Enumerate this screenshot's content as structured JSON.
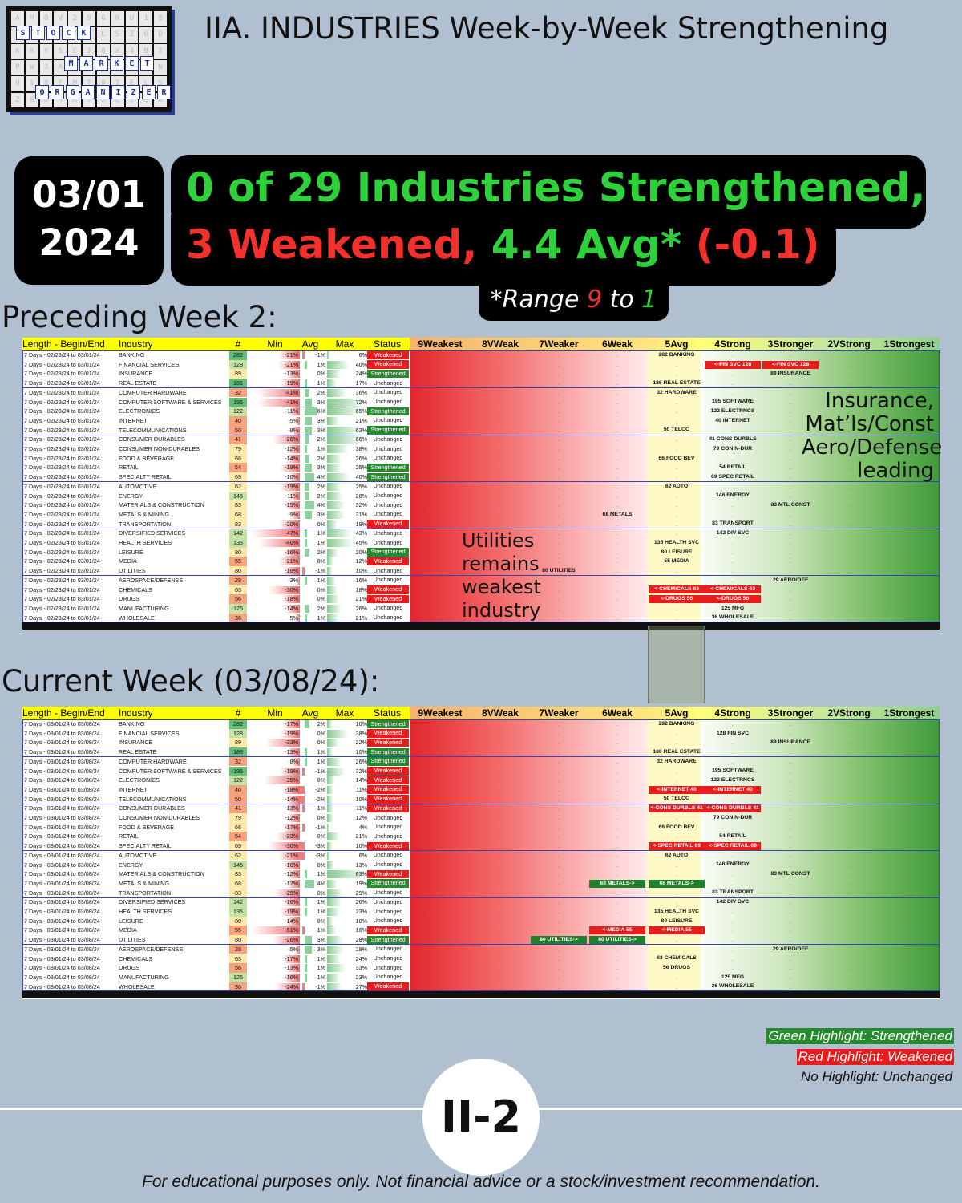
{
  "logo": {
    "words": [
      "STOCK",
      "MARKET",
      "ORGANIZER"
    ]
  },
  "title": "IIA. INDUSTRIES Week-by-Week Strengthening",
  "date": {
    "line1": "03/01",
    "line2": "2024"
  },
  "headline": {
    "line1": "0 of 29 Industries Strengthened,",
    "line2_weak": "3 Weakened, ",
    "line2_avg": "4.4 Avg* ",
    "line2_delta": "(-0.1)"
  },
  "range": {
    "prefix": "*Range ",
    "hi": "9",
    "mid": " to ",
    "lo": "1"
  },
  "section1": "Preceding Week 2:",
  "section2": "Current Week (03/08/24):",
  "columns": [
    "Length - Begin/End",
    "Industry",
    "#",
    "Min",
    "Avg",
    "Max",
    "Status",
    "9Weakest",
    "8VWeak",
    "7Weaker",
    "6Weak",
    "5Avg",
    "4Strong",
    "3Stronger",
    "2VStrong",
    "1Strongest"
  ],
  "colors": {
    "strengthened": "#25892d",
    "weakened": "#e81c1d",
    "header": "#ffff00"
  },
  "industries": [
    "BANKING",
    "FINANCIAL SERVICES",
    "INSURANCE",
    "REAL ESTATE",
    "COMPUTER HARDWARE",
    "COMPUTER SOFTWARE & SERVICES",
    "ELECTRONICS",
    "INTERNET",
    "TELECOMMUNICATIONS",
    "CONSUMER DURABLES",
    "CONSUMER NON-DURABLES",
    "FOOD & BEVERAGE",
    "RETAIL",
    "SPECIALTY RETAIL",
    "AUTOMOTIVE",
    "ENERGY",
    "MATERIALS & CONSTRUCTION",
    "METALS & MINING",
    "TRANSPORTATION",
    "DIVERSIFIED SERVICES",
    "HEALTH SERVICES",
    "LEISURE",
    "MEDIA",
    "UTILITIES",
    "AEROSPACE/DEFENSE",
    "CHEMICALS",
    "DRUGS",
    "MANUFACTURING",
    "WHOLESALE"
  ],
  "counts": [
    "282",
    "128",
    "89",
    "186",
    "32",
    "195",
    "122",
    "40",
    "50",
    "41",
    "79",
    "66",
    "54",
    "69",
    "62",
    "146",
    "83",
    "68",
    "83",
    "142",
    "135",
    "80",
    "55",
    "80",
    "29",
    "63",
    "56",
    "125",
    "36"
  ],
  "week1": {
    "period": "7 Days - 02/23/24 to 03/01/24",
    "rows": [
      [
        "-21%",
        "-1%",
        "6%",
        "Weakened"
      ],
      [
        "-21%",
        "1%",
        "40%",
        "Weakened"
      ],
      [
        "-13%",
        "0%",
        "24%",
        "Strengthened"
      ],
      [
        "-19%",
        "1%",
        "17%",
        "Unchanged"
      ],
      [
        "-41%",
        "2%",
        "36%",
        "Unchanged"
      ],
      [
        "-41%",
        "3%",
        "72%",
        "Unchanged"
      ],
      [
        "-11%",
        "6%",
        "65%",
        "Strengthened"
      ],
      [
        "-5%",
        "3%",
        "21%",
        "Unchanged"
      ],
      [
        "-8%",
        "3%",
        "63%",
        "Strengthened"
      ],
      [
        "-26%",
        "2%",
        "66%",
        "Unchanged"
      ],
      [
        "-12%",
        "1%",
        "38%",
        "Unchanged"
      ],
      [
        "-14%",
        "2%",
        "26%",
        "Unchanged"
      ],
      [
        "-19%",
        "3%",
        "25%",
        "Strengthened"
      ],
      [
        "-10%",
        "4%",
        "40%",
        "Strengthened"
      ],
      [
        "-19%",
        "2%",
        "25%",
        "Unchanged"
      ],
      [
        "-11%",
        "2%",
        "28%",
        "Unchanged"
      ],
      [
        "-15%",
        "4%",
        "32%",
        "Unchanged"
      ],
      [
        "-9%",
        "3%",
        "31%",
        "Unchanged"
      ],
      [
        "-20%",
        "0%",
        "19%",
        "Weakened"
      ],
      [
        "-47%",
        "1%",
        "43%",
        "Unchanged"
      ],
      [
        "-40%",
        "1%",
        "45%",
        "Unchanged"
      ],
      [
        "-16%",
        "2%",
        "20%",
        "Strengthened"
      ],
      [
        "-21%",
        "0%",
        "12%",
        "Weakened"
      ],
      [
        "-16%",
        "-1%",
        "10%",
        "Unchanged"
      ],
      [
        "-3%",
        "1%",
        "16%",
        "Unchanged"
      ],
      [
        "-30%",
        "0%",
        "18%",
        "Weakened"
      ],
      [
        "-18%",
        "0%",
        "21%",
        "Weakened"
      ],
      [
        "-14%",
        "2%",
        "26%",
        "Unchanged"
      ],
      [
        "-5%",
        "1%",
        "21%",
        "Unchanged"
      ]
    ],
    "marks": [
      [
        "282 BANKING",
        5,
        ""
      ],
      [
        "<-FIN SVC 128",
        4,
        "r"
      ],
      [
        "<-FIN SVC 128",
        3,
        "r"
      ],
      [
        "89 INSURANCE",
        3,
        ""
      ],
      [
        "186 REAL ESTATE",
        5,
        ""
      ],
      [
        "32 HARDWARE",
        5,
        ""
      ],
      [
        "195 SOFTWARE",
        4,
        ""
      ],
      [
        "122 ELECTRNCS",
        4,
        ""
      ],
      [
        "40 INTERNET",
        4,
        ""
      ],
      [
        "50 TELCO",
        5,
        ""
      ],
      [
        "41 CONS DURBLS",
        4,
        ""
      ],
      [
        "79 CON N-DUR",
        4,
        ""
      ],
      [
        "66 FOOD BEV",
        5,
        ""
      ],
      [
        "54 RETAIL",
        4,
        ""
      ],
      [
        "69 SPEC RETAIL",
        4,
        ""
      ],
      [
        "62 AUTO",
        5,
        ""
      ],
      [
        "146 ENERGY",
        4,
        ""
      ],
      [
        "83 MTL CONST",
        3,
        ""
      ],
      [
        "68 METALS",
        6,
        ""
      ],
      [
        "83 TRANSPORT",
        4,
        ""
      ],
      [
        "142 DIV SVC",
        4,
        ""
      ],
      [
        "135 HEALTH SVC",
        5,
        ""
      ],
      [
        "80 LEISURE",
        5,
        ""
      ],
      [
        "55 MEDIA",
        5,
        ""
      ],
      [
        "80 UTILITIES",
        7,
        ""
      ],
      [
        "29 AERO/DEF",
        3,
        ""
      ],
      [
        "<-CHEMICALS 63",
        5,
        "r"
      ],
      [
        "<-CHEMICALS 63",
        4,
        "r"
      ],
      [
        "<-DRUGS 56",
        5,
        "r"
      ],
      [
        "<-DRUGS 56",
        4,
        "r"
      ],
      [
        "125 MFG",
        4,
        ""
      ],
      [
        "36 WHOLESALE",
        4,
        ""
      ]
    ],
    "markRows": [
      0,
      1,
      1,
      2,
      3,
      4,
      5,
      6,
      7,
      8,
      9,
      10,
      11,
      12,
      13,
      14,
      15,
      16,
      17,
      18,
      19,
      20,
      21,
      22,
      23,
      24,
      25,
      25,
      26,
      26,
      27,
      28
    ]
  },
  "week2": {
    "period": "7 Days - 03/01/24 to 03/08/24",
    "rows": [
      [
        "-17%",
        "2%",
        "10%",
        "Strengthened"
      ],
      [
        "-19%",
        "0%",
        "38%",
        "Weakened"
      ],
      [
        "-33%",
        "0%",
        "22%",
        "Weakened"
      ],
      [
        "-13%",
        "1%",
        "10%",
        "Strengthened"
      ],
      [
        "-8%",
        "1%",
        "26%",
        "Strengthened"
      ],
      [
        "-19%",
        "-1%",
        "32%",
        "Weakened"
      ],
      [
        "-35%",
        "0%",
        "14%",
        "Weakened"
      ],
      [
        "-18%",
        "-2%",
        "11%",
        "Weakened"
      ],
      [
        "-14%",
        "-2%",
        "10%",
        "Weakened"
      ],
      [
        "-13%",
        "-1%",
        "11%",
        "Weakened"
      ],
      [
        "-12%",
        "0%",
        "12%",
        "Unchanged"
      ],
      [
        "-17%",
        "-1%",
        "4%",
        "Unchanged"
      ],
      [
        "-23%",
        "0%",
        "21%",
        "Unchanged"
      ],
      [
        "-30%",
        "-3%",
        "10%",
        "Weakened"
      ],
      [
        "-21%",
        "-3%",
        "6%",
        "Unchanged"
      ],
      [
        "-16%",
        "0%",
        "13%",
        "Unchanged"
      ],
      [
        "-12%",
        "1%",
        "83%",
        "Weakened"
      ],
      [
        "-12%",
        "4%",
        "19%",
        "Strengthened"
      ],
      [
        "-25%",
        "0%",
        "29%",
        "Unchanged"
      ],
      [
        "-16%",
        "1%",
        "26%",
        "Unchanged"
      ],
      [
        "-19%",
        "1%",
        "23%",
        "Unchanged"
      ],
      [
        "-14%",
        "0%",
        "10%",
        "Unchanged"
      ],
      [
        "-61%",
        "-1%",
        "16%",
        "Weakened"
      ],
      [
        "-26%",
        "3%",
        "28%",
        "Strengthened"
      ],
      [
        "-5%",
        "3%",
        "29%",
        "Unchanged"
      ],
      [
        "-17%",
        "1%",
        "24%",
        "Unchanged"
      ],
      [
        "-13%",
        "1%",
        "33%",
        "Unchanged"
      ],
      [
        "-16%",
        "1%",
        "23%",
        "Unchanged"
      ],
      [
        "-24%",
        "-1%",
        "27%",
        "Weakened"
      ]
    ],
    "marks": [
      [
        "282 BANKING",
        5,
        ""
      ],
      [
        "128 FIN SVC",
        4,
        ""
      ],
      [
        "89 INSURANCE",
        3,
        ""
      ],
      [
        "186 REAL ESTATE",
        5,
        ""
      ],
      [
        "32 HARDWARE",
        5,
        ""
      ],
      [
        "195 SOFTWARE",
        4,
        ""
      ],
      [
        "122 ELECTRNCS",
        4,
        ""
      ],
      [
        "<-INTERNET 40",
        5,
        "r"
      ],
      [
        "<-INTERNET 40",
        4,
        "r"
      ],
      [
        "50 TELCO",
        5,
        ""
      ],
      [
        "<-CONS DURBLS 41",
        5,
        "r"
      ],
      [
        "<-CONS DURBLS 41",
        4,
        "r"
      ],
      [
        "79 CON N-DUR",
        4,
        ""
      ],
      [
        "66 FOOD BEV",
        5,
        ""
      ],
      [
        "54 RETAIL",
        4,
        ""
      ],
      [
        "<-SPEC RETAIL 69",
        5,
        "r"
      ],
      [
        "<-SPEC RETAIL 69",
        4,
        "r"
      ],
      [
        "62 AUTO",
        5,
        ""
      ],
      [
        "146 ENERGY",
        4,
        ""
      ],
      [
        "83 MTL CONST",
        3,
        ""
      ],
      [
        "68 METALS->",
        6,
        "g"
      ],
      [
        "68 METALS->",
        5,
        "g"
      ],
      [
        "83 TRANSPORT",
        4,
        ""
      ],
      [
        "142 DIV SVC",
        4,
        ""
      ],
      [
        "135 HEALTH SVC",
        5,
        ""
      ],
      [
        "80 LEISURE",
        5,
        ""
      ],
      [
        "<-MEDIA 55",
        6,
        "r"
      ],
      [
        "<-MEDIA 55",
        5,
        "r"
      ],
      [
        "80 UTILITIES->",
        7,
        "g"
      ],
      [
        "80 UTILITIES->",
        6,
        "g"
      ],
      [
        "29 AERO/DEF",
        3,
        ""
      ],
      [
        "63 CHEMICALS",
        5,
        ""
      ],
      [
        "56 DRUGS",
        5,
        ""
      ],
      [
        "125 MFG",
        4,
        ""
      ],
      [
        "36 WHOLESALE",
        4,
        ""
      ]
    ],
    "markRows": [
      0,
      1,
      2,
      3,
      4,
      5,
      6,
      7,
      7,
      8,
      9,
      9,
      10,
      11,
      12,
      13,
      13,
      14,
      15,
      16,
      17,
      17,
      18,
      19,
      20,
      21,
      22,
      22,
      23,
      23,
      24,
      25,
      26,
      27,
      28
    ]
  },
  "annotations": {
    "leading": [
      "Insurance,",
      "Mat’ls/Const",
      "Aero/Defense",
      "leading"
    ],
    "utilities": [
      "Utilities",
      "remains",
      "weakest",
      "industry"
    ]
  },
  "legend": {
    "green": "Green Highlight: Strengthened",
    "red": "Red Highlight: Weakened",
    "none": "No Highlight: Unchanged"
  },
  "page_number": "II-2",
  "footer": "For educational purposes only. Not financial advice or a stock/investment recommendation."
}
